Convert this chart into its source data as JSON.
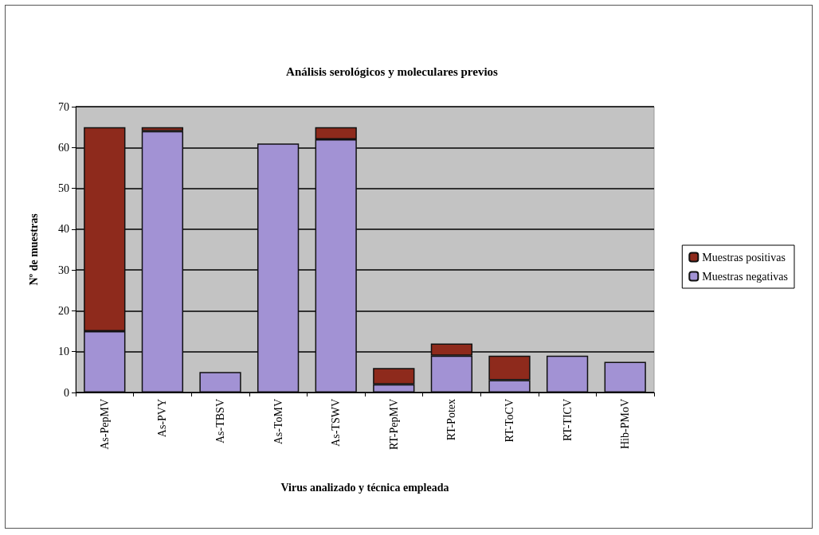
{
  "chart_data": {
    "type": "bar",
    "title": "Análisis serológicos y moleculares previos",
    "xlabel": "Virus analizado y técnica empleada",
    "ylabel": "Nº de muestras",
    "categories": [
      "As-PepMV",
      "As-PVY",
      "As-TBSV",
      "As-ToMV",
      "As-TSWV",
      "RT-PepMV",
      "RT-Potex",
      "RT-ToCV",
      "RT-TICV",
      "Hib-PMoV"
    ],
    "stacked": true,
    "series": [
      {
        "name": "Muestras negativas",
        "color": "#a292d4",
        "values": [
          15,
          64,
          5,
          61,
          62,
          2,
          9,
          3,
          9,
          7.5
        ]
      },
      {
        "name": "Muestras positivas",
        "color": "#8e2a1c",
        "values": [
          50,
          1,
          null,
          null,
          3,
          4,
          3,
          6,
          null,
          null
        ]
      }
    ],
    "ylim": [
      0,
      70
    ],
    "yticks": [
      0,
      10,
      20,
      30,
      40,
      50,
      60,
      70
    ],
    "grid": "y",
    "legend": "right"
  }
}
